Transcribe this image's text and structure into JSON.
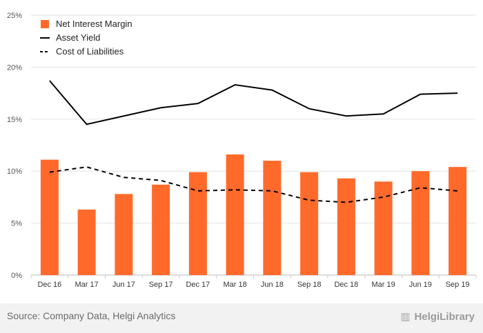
{
  "chart_data": {
    "type": "bar",
    "categories": [
      "Dec 16",
      "Mar 17",
      "Jun 17",
      "Sep 17",
      "Dec 17",
      "Mar 18",
      "Jun 18",
      "Sep 18",
      "Dec 18",
      "Mar 19",
      "Jun 19",
      "Sep 19"
    ],
    "series": [
      {
        "name": "Net Interest Margin",
        "type": "bar",
        "color": "#ff6a2a",
        "values": [
          11.1,
          6.3,
          7.8,
          8.7,
          9.9,
          11.6,
          11.0,
          9.9,
          9.3,
          9.0,
          10.0,
          10.4
        ]
      },
      {
        "name": "Asset Yield",
        "type": "line",
        "style": "solid",
        "color": "#000000",
        "values": [
          18.7,
          14.5,
          15.3,
          16.1,
          16.5,
          18.3,
          17.8,
          16.0,
          15.3,
          15.5,
          17.4,
          17.5
        ]
      },
      {
        "name": "Cost of Liabilities",
        "type": "line",
        "style": "dashed",
        "color": "#000000",
        "values": [
          9.9,
          10.4,
          9.4,
          9.1,
          8.1,
          8.2,
          8.1,
          7.2,
          7.0,
          7.5,
          8.4,
          8.1
        ]
      }
    ],
    "yticks": [
      "0%",
      "5%",
      "10%",
      "15%",
      "20%",
      "25%"
    ],
    "ylim": [
      0,
      25
    ],
    "grid": true,
    "legend_position": "top-left",
    "title": "",
    "xlabel": "",
    "ylabel": ""
  },
  "footer": {
    "source": "Source: Company Data, Helgi Analytics",
    "brand": "HelgiLibrary",
    "brand_icon": "library-logo-icon"
  }
}
